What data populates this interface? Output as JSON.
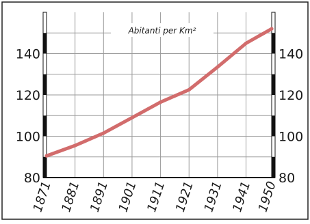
{
  "chart_data": {
    "type": "line",
    "title": "Abitanti per Km²",
    "xlabel": "",
    "ylabel": "",
    "x": [
      1871,
      1881,
      1891,
      1901,
      1911,
      1921,
      1931,
      1941,
      1950
    ],
    "categories": [
      "1871",
      "1881",
      "1891",
      "1901",
      "1911",
      "1921",
      "1931",
      "1941",
      "1950"
    ],
    "series": [
      {
        "values": [
          90.5,
          95.5,
          101.5,
          109,
          116.5,
          122.5,
          133.5,
          145,
          152
        ]
      }
    ],
    "ylim": [
      80,
      160
    ],
    "yticks": [
      80,
      100,
      120,
      140
    ],
    "ytick_labels": [
      "80",
      "100",
      "120",
      "140"
    ],
    "grid": true,
    "line_color": "#d26c6c",
    "grid_color": "#9a9a9a",
    "axis_color": "#111111"
  }
}
